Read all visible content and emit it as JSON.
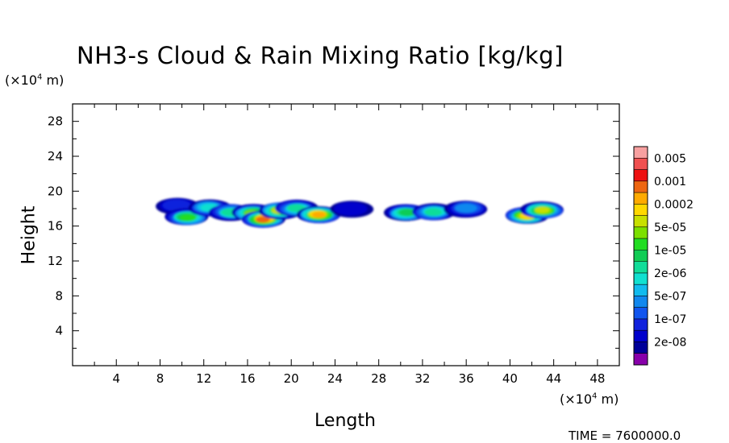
{
  "chart_data": {
    "type": "heatmap",
    "title": "NH3-s Cloud & Rain Mixing Ratio [kg/kg]",
    "xlabel": "Length",
    "ylabel": "Height",
    "x_units": "(×10⁴ m)",
    "y_units": "(×10⁴ m)",
    "xlim": [
      0,
      50
    ],
    "ylim": [
      0,
      30
    ],
    "x_ticks": [
      4,
      8,
      12,
      16,
      20,
      24,
      28,
      32,
      36,
      40,
      44,
      48
    ],
    "y_ticks": [
      4,
      8,
      12,
      16,
      20,
      24,
      28
    ],
    "colorbar": {
      "labels": [
        "0.005",
        "0.001",
        "0.0002",
        "5e-05",
        "1e-05",
        "2e-06",
        "5e-07",
        "1e-07",
        "2e-08"
      ],
      "colors_top_to_bottom": [
        "#f7a0a0",
        "#f05050",
        "#ee1111",
        "#ee6611",
        "#ffaa00",
        "#ffd800",
        "#c8e000",
        "#7ce000",
        "#22dd22",
        "#11cc55",
        "#11dd99",
        "#11e0d0",
        "#11bbee",
        "#1188ee",
        "#1155ee",
        "#1122dd",
        "#0000cc",
        "#000099",
        "#8800aa"
      ]
    },
    "field_blobs": [
      {
        "x": 9.5,
        "y": 18.3,
        "level": 3
      },
      {
        "x": 10.5,
        "y": 17.0,
        "level": 10
      },
      {
        "x": 12.5,
        "y": 18.1,
        "level": 7
      },
      {
        "x": 14.5,
        "y": 17.6,
        "level": 8
      },
      {
        "x": 16.5,
        "y": 17.5,
        "level": 11
      },
      {
        "x": 17.5,
        "y": 16.8,
        "level": 15
      },
      {
        "x": 19.0,
        "y": 17.8,
        "level": 12
      },
      {
        "x": 20.5,
        "y": 18.0,
        "level": 8
      },
      {
        "x": 22.5,
        "y": 17.3,
        "level": 14
      },
      {
        "x": 25.5,
        "y": 18.0,
        "level": 2
      },
      {
        "x": 30.5,
        "y": 17.5,
        "level": 9
      },
      {
        "x": 33.0,
        "y": 17.6,
        "level": 8
      },
      {
        "x": 36.0,
        "y": 18.0,
        "level": 5
      },
      {
        "x": 41.5,
        "y": 17.2,
        "level": 13
      },
      {
        "x": 43.0,
        "y": 17.8,
        "level": 12
      }
    ]
  },
  "footer": {
    "time_label": "TIME = 7600000.0"
  }
}
